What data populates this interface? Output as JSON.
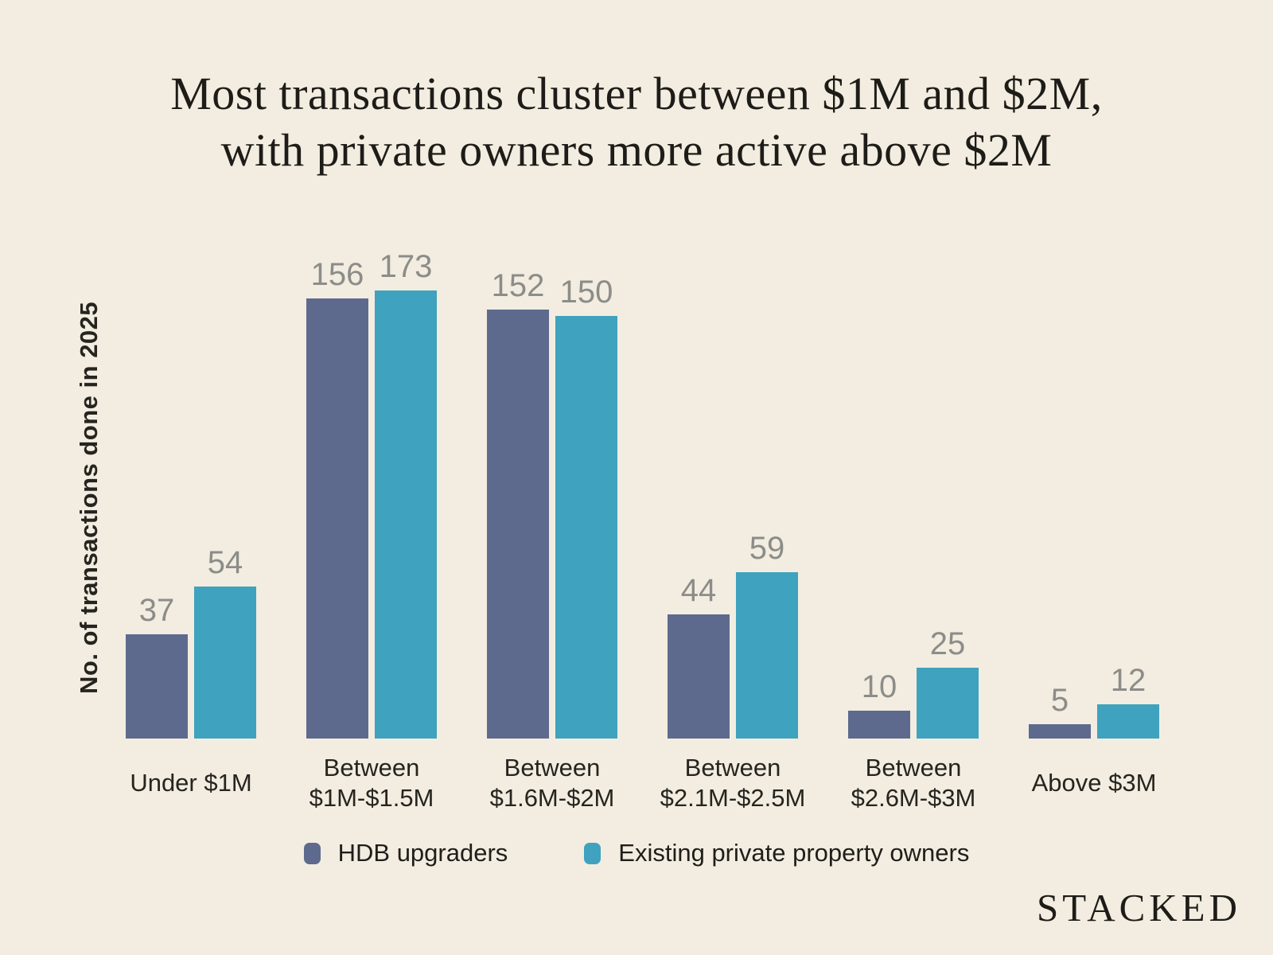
{
  "title": {
    "line1": "Most transactions cluster between $1M and $2M,",
    "line2": "with private owners more active above $2M"
  },
  "watermark": "STACKED",
  "colors": {
    "background": "#F2EDE0",
    "title_text": "#1E1C18",
    "bar_hdb": "#5E6A8D",
    "bar_private": "#3FA2BE",
    "value_label": "#8C8C89",
    "axis_label": "#26241F"
  },
  "chart_data": {
    "type": "bar",
    "title": "Most transactions cluster between $1M and $2M, with private owners more active above $2M",
    "xlabel": "",
    "ylabel": "No. of transactions done in 2025",
    "ylim": [
      0,
      173
    ],
    "grid": false,
    "legend_position": "bottom",
    "categories": [
      "Under $1M",
      "Between $1M-$1.5M",
      "Between $1.6M-$2M",
      "Between $2.1M-$2.5M",
      "Between $2.6M-$3M",
      "Above $3M"
    ],
    "category_lines": [
      [
        "Under $1M"
      ],
      [
        "Between",
        "$1M-$1.5M"
      ],
      [
        "Between",
        "$1.6M-$2M"
      ],
      [
        "Between",
        "$2.1M-$2.5M"
      ],
      [
        "Between",
        "$2.6M-$3M"
      ],
      [
        "Above $3M"
      ]
    ],
    "series": [
      {
        "name": "HDB upgraders",
        "color": "#5E6A8D",
        "values": [
          37,
          156,
          152,
          44,
          10,
          5
        ]
      },
      {
        "name": "Existing private property owners",
        "color": "#3FA2BE",
        "values": [
          54,
          173,
          150,
          59,
          25,
          12
        ]
      }
    ]
  }
}
